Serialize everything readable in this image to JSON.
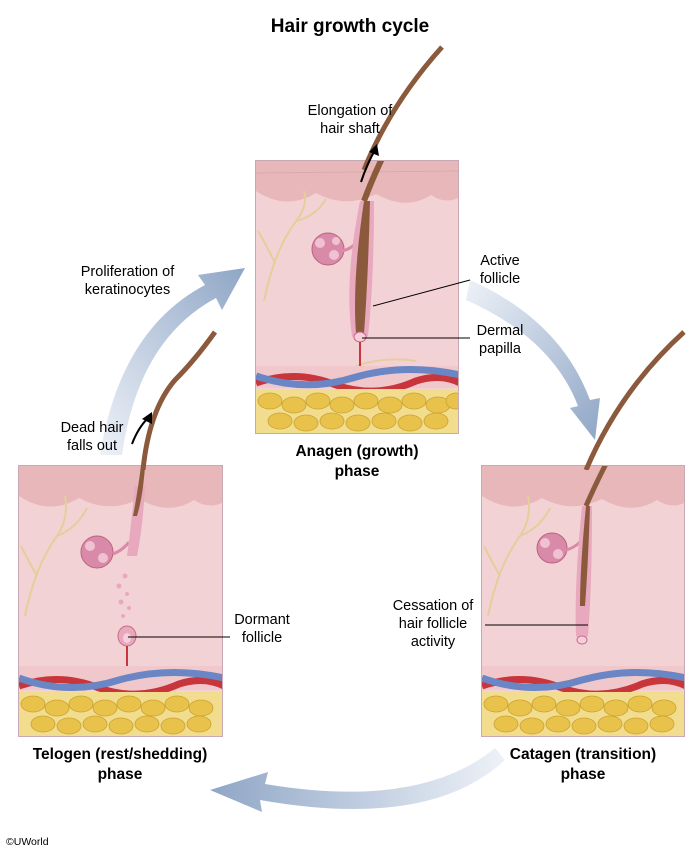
{
  "title": "Hair growth cycle",
  "phases": {
    "anagen": {
      "line1": "Anagen (growth)",
      "line2": "phase"
    },
    "catagen": {
      "line1": "Catagen (transition)",
      "line2": "phase"
    },
    "telogen": {
      "line1": "Telogen (rest/shedding)",
      "line2": "phase"
    }
  },
  "labels": {
    "elongation": {
      "line1": "Elongation of",
      "line2": "hair shaft"
    },
    "active_follicle": {
      "line1": "Active",
      "line2": "follicle"
    },
    "dermal_papilla": {
      "line1": "Dermal",
      "line2": "papilla"
    },
    "proliferation": {
      "line1": "Proliferation of",
      "line2": "keratinocytes"
    },
    "dead_hair": {
      "line1": "Dead hair",
      "line2": "falls out"
    },
    "dormant_follicle": {
      "line1": "Dormant",
      "line2": "follicle"
    },
    "cessation": {
      "line1": "Cessation of",
      "line2": "hair follicle",
      "line3": "activity"
    }
  },
  "copyright": "©UWorld",
  "colors": {
    "skin_surface": "#e9c3c3",
    "dermis": "#f3d2d6",
    "hair": "#8b5a3c",
    "fat": "#e9c64f",
    "artery": "#c8353b",
    "vein": "#6a86c4",
    "nerve": "#e8d7a6",
    "gland": "#d98aa8",
    "arrow": "#9fb4cf"
  }
}
